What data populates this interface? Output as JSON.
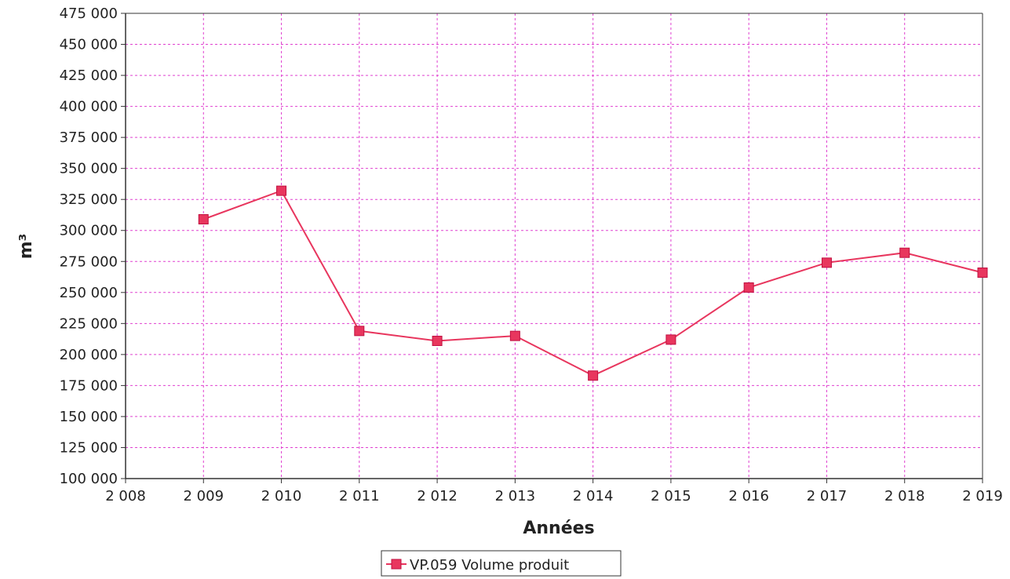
{
  "chart_data": {
    "type": "line",
    "xlabel": "Années",
    "ylabel": "m³",
    "xlim": [
      2008,
      2019
    ],
    "ylim": [
      100000,
      475000
    ],
    "x_ticks": [
      2008,
      2009,
      2010,
      2011,
      2012,
      2013,
      2014,
      2015,
      2016,
      2017,
      2018,
      2019
    ],
    "x_tick_labels": [
      "2 008",
      "2 009",
      "2 010",
      "2 011",
      "2 012",
      "2 013",
      "2 014",
      "2 015",
      "2 016",
      "2 017",
      "2 018",
      "2 019"
    ],
    "y_ticks": [
      100000,
      125000,
      150000,
      175000,
      200000,
      225000,
      250000,
      275000,
      300000,
      325000,
      350000,
      375000,
      400000,
      425000,
      450000,
      475000
    ],
    "y_tick_labels": [
      "100 000",
      "125 000",
      "150 000",
      "175 000",
      "200 000",
      "225 000",
      "250 000",
      "275 000",
      "300 000",
      "325 000",
      "350 000",
      "375 000",
      "400 000",
      "425 000",
      "450 000",
      "475 000"
    ],
    "grid": true,
    "legend_position": "bottom-center",
    "series": [
      {
        "name": "VP.059 Volume produit",
        "color": "#e8365e",
        "marker": "square",
        "x": [
          2009,
          2010,
          2011,
          2012,
          2013,
          2014,
          2015,
          2016,
          2017,
          2018,
          2019
        ],
        "values": [
          309000,
          332000,
          219000,
          211000,
          215000,
          183000,
          212000,
          254000,
          274000,
          282000,
          266000
        ]
      }
    ]
  }
}
